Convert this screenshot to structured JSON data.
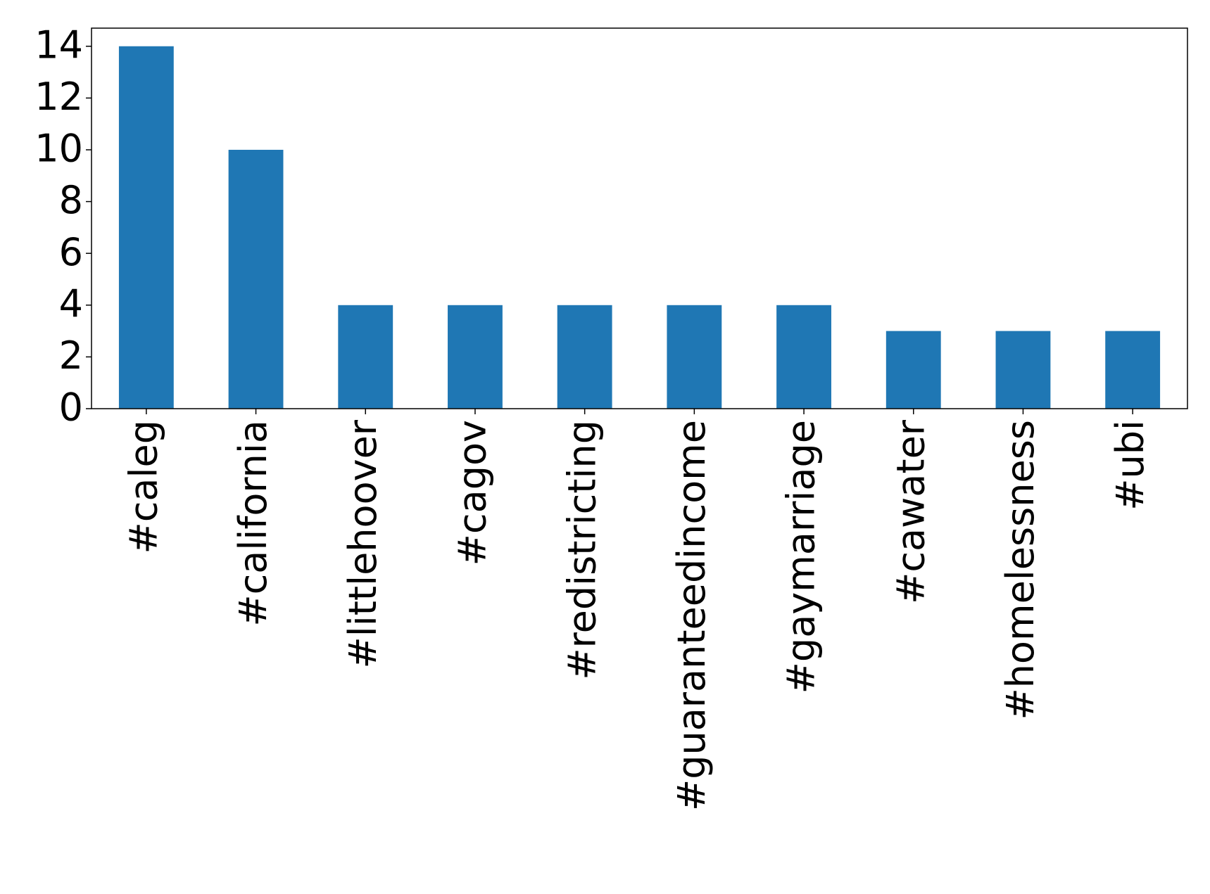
{
  "chart_data": {
    "type": "bar",
    "categories": [
      "#caleg",
      "#california",
      "#littlehoover",
      "#cagov",
      "#redistricting",
      "#guaranteedincome",
      "#gaymarriage",
      "#cawater",
      "#homelessness",
      "#ubi"
    ],
    "values": [
      14,
      10,
      4,
      4,
      4,
      4,
      4,
      3,
      3,
      3
    ],
    "color": "#1f77b4",
    "ylim": [
      0,
      14.7
    ],
    "yticks": [
      0,
      2,
      4,
      6,
      8,
      10,
      12,
      14
    ],
    "grid": false
  }
}
